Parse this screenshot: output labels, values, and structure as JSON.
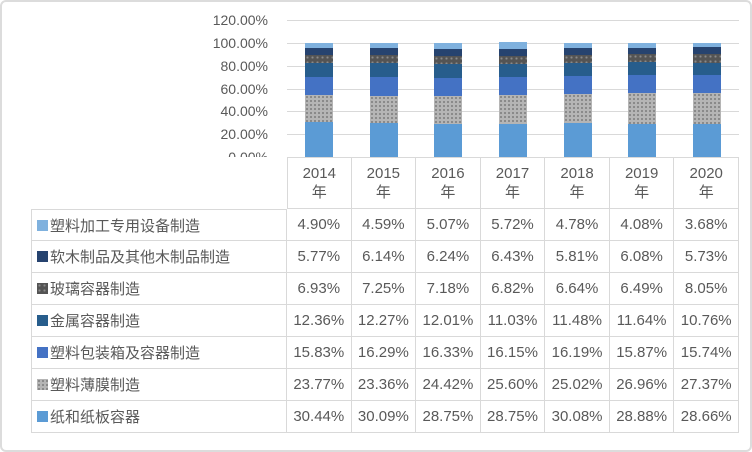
{
  "chart_data": {
    "type": "bar",
    "stacked": true,
    "percent_stacked": true,
    "title": "",
    "xlabel": "",
    "ylabel": "",
    "ylim": [
      0,
      120
    ],
    "grid": true,
    "legend_position": "data-table-left-column",
    "y_ticks": [
      "0.00%",
      "20.00%",
      "40.00%",
      "60.00%",
      "80.00%",
      "100.00%",
      "120.00%"
    ],
    "categories": [
      {
        "year": "2014",
        "suffix": "年"
      },
      {
        "year": "2015",
        "suffix": "年"
      },
      {
        "year": "2016",
        "suffix": "年"
      },
      {
        "year": "2017",
        "suffix": "年"
      },
      {
        "year": "2018",
        "suffix": "年"
      },
      {
        "year": "2019",
        "suffix": "年"
      },
      {
        "year": "2020",
        "suffix": "年"
      }
    ],
    "series": [
      {
        "name": "塑料加工专用设备制造",
        "color": "#7FB1DE",
        "pattern": null,
        "values": [
          4.9,
          4.59,
          5.07,
          5.72,
          4.78,
          4.08,
          3.68
        ],
        "display": [
          "4.90%",
          "4.59%",
          "5.07%",
          "5.72%",
          "4.78%",
          "4.08%",
          "3.68%"
        ]
      },
      {
        "name": "软木制品及其他木制品制造",
        "color": "#26436F",
        "pattern": null,
        "values": [
          5.77,
          6.14,
          6.24,
          6.43,
          5.81,
          6.08,
          5.73
        ],
        "display": [
          "5.77%",
          "6.14%",
          "6.24%",
          "6.43%",
          "5.81%",
          "6.08%",
          "5.73%"
        ]
      },
      {
        "name": "玻璃容器制造",
        "color": "#545454",
        "pattern": "dots-dark",
        "values": [
          6.93,
          7.25,
          7.18,
          6.82,
          6.64,
          6.49,
          8.05
        ],
        "display": [
          "6.93%",
          "7.25%",
          "7.18%",
          "6.82%",
          "6.64%",
          "6.49%",
          "8.05%"
        ]
      },
      {
        "name": "金属容器制造",
        "color": "#275D8C",
        "pattern": null,
        "values": [
          12.36,
          12.27,
          12.01,
          11.03,
          11.48,
          11.64,
          10.76
        ],
        "display": [
          "12.36%",
          "12.27%",
          "12.01%",
          "11.03%",
          "11.48%",
          "11.64%",
          "10.76%"
        ]
      },
      {
        "name": "塑料包装箱及容器制造",
        "color": "#4472C4",
        "pattern": null,
        "values": [
          15.83,
          16.29,
          16.33,
          16.15,
          16.19,
          15.87,
          15.74
        ],
        "display": [
          "15.83%",
          "16.29%",
          "16.33%",
          "16.15%",
          "16.19%",
          "15.87%",
          "15.74%"
        ]
      },
      {
        "name": "塑料薄膜制造",
        "color": "#B5B5B5",
        "pattern": "dots-light",
        "values": [
          23.77,
          23.36,
          24.42,
          25.6,
          25.02,
          26.96,
          27.37
        ],
        "display": [
          "23.77%",
          "23.36%",
          "24.42%",
          "25.60%",
          "25.02%",
          "26.96%",
          "27.37%"
        ]
      },
      {
        "name": "纸和纸板容器",
        "color": "#5B9BD5",
        "pattern": null,
        "values": [
          30.44,
          30.09,
          28.75,
          28.75,
          30.08,
          28.88,
          28.66
        ],
        "display": [
          "30.44%",
          "30.09%",
          "28.75%",
          "28.75%",
          "30.08%",
          "28.88%",
          "28.66%"
        ]
      }
    ]
  },
  "colors": {
    "border": "#D9D9D9",
    "text": "#595959",
    "background": "#FFFFFF"
  }
}
